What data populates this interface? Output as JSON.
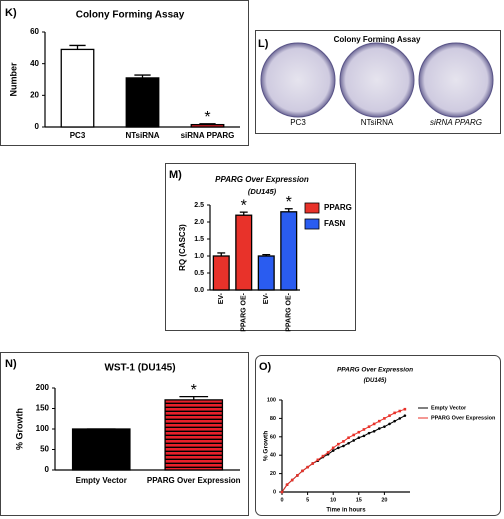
{
  "chart_data": [
    {
      "type": "bar",
      "label": "K)",
      "title": "Colony Forming Assay",
      "ylabel": "Number",
      "categories": [
        "PC3",
        "NTsiRNA",
        "siRNA PPARG"
      ],
      "values": [
        49,
        31,
        1.5
      ],
      "errors": [
        2.5,
        1.8,
        0.5
      ],
      "colors": [
        "#ffffff",
        "#000000",
        "#e8202a"
      ],
      "annotations": [
        null,
        null,
        "*"
      ],
      "ylim": [
        0,
        60
      ],
      "yticks": [
        0,
        20,
        40,
        60
      ]
    },
    {
      "type": "bar",
      "label": "M)",
      "title": "PPARG Over Expression",
      "subtitle": "(DU145)",
      "ylabel": "RQ (CASC3)",
      "categories": [
        "EV-",
        "PPARG OE-",
        "EV-",
        "PPARG OE-"
      ],
      "series": [
        {
          "name": "PPARG",
          "color": "#e8322a",
          "values": [
            1.0,
            2.2,
            null,
            null
          ],
          "errors": [
            0.09,
            0.09,
            null,
            null
          ]
        },
        {
          "name": "FASN",
          "color": "#2a5cf0",
          "values": [
            null,
            null,
            1.0,
            2.3
          ],
          "errors": [
            null,
            null,
            0.04,
            0.09
          ]
        }
      ],
      "annotations": [
        null,
        "*",
        null,
        "*"
      ],
      "ylim": [
        0,
        2.5
      ],
      "yticks": [
        {
          "value": 0,
          "label": "0.0"
        },
        0.5,
        {
          "value": 1,
          "label": "1.0"
        },
        1.5,
        {
          "value": 2,
          "label": "2.0"
        },
        2.5
      ]
    },
    {
      "type": "bar",
      "label": "N)",
      "title": "WST-1 (DU145)",
      "ylabel": "% Growth",
      "categories": [
        "Empty Vector",
        "PPARG Over Expression"
      ],
      "values": [
        100,
        171
      ],
      "errors": [
        0,
        8
      ],
      "colors": [
        "#000000",
        "#e8202a"
      ],
      "striped": [
        false,
        true
      ],
      "annotations": [
        null,
        "*"
      ],
      "ylim": [
        0,
        200
      ],
      "yticks": [
        0,
        50,
        100,
        150,
        200
      ]
    },
    {
      "type": "line",
      "label": "O)",
      "title": "PPARG Over Expression",
      "subtitle": "(DU145)",
      "ylabel": "% Growth",
      "xlabel": "Time in hours",
      "x": [
        0,
        1,
        2,
        3,
        4,
        5,
        6,
        7,
        8,
        9,
        10,
        11,
        12,
        13,
        14,
        15,
        16,
        17,
        18,
        19,
        20,
        21,
        22,
        23,
        24
      ],
      "series": [
        {
          "name": "Empty Vector",
          "color": "#000000",
          "values": [
            0,
            8,
            13,
            18,
            23,
            27,
            31,
            34,
            38,
            41,
            45,
            48,
            50,
            53,
            56,
            59,
            61,
            64,
            66,
            69,
            71,
            74,
            77,
            80,
            83
          ]
        },
        {
          "name": "PPARG Over Expression",
          "color": "#e8322a",
          "values": [
            0,
            8,
            13,
            18,
            23,
            27,
            31,
            35,
            39,
            43,
            48,
            52,
            55,
            59,
            62,
            65,
            68,
            71,
            74,
            77,
            80,
            83,
            86,
            88,
            90
          ]
        }
      ],
      "xlim": [
        0,
        25
      ],
      "xticks": [
        0,
        5,
        10,
        15,
        20
      ],
      "ylim": [
        0,
        100
      ],
      "yticks": [
        0,
        20,
        40,
        60,
        80,
        100
      ]
    }
  ],
  "photo": {
    "label": "L)",
    "title": "Colony Forming Assay",
    "captions": [
      "PC3",
      "NTsiRNA",
      "siRNA PPARG"
    ]
  }
}
